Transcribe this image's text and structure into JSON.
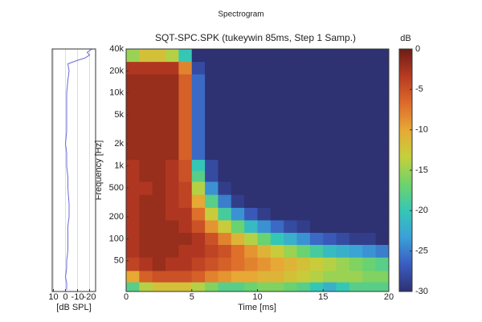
{
  "title": "Spectrogram",
  "chart_data": [
    {
      "type": "line",
      "xlabel": "[dB SPL]",
      "color": "#6b6bd6",
      "grid": true,
      "log_y": true,
      "y": [
        20,
        25,
        30,
        40,
        50,
        70,
        100,
        150,
        200,
        300,
        500,
        700,
        1000,
        1500,
        2000,
        3000,
        5000,
        7000,
        10000,
        15000,
        20000,
        25000,
        28000,
        30000,
        33000,
        36000,
        40000
      ],
      "values": [
        -1,
        -1,
        0,
        -1,
        -1,
        -2,
        -2,
        -2,
        -3,
        -3,
        -2,
        -2,
        -1,
        -1,
        0,
        -1,
        -1,
        -1,
        -1,
        -2,
        -3,
        -2,
        -10,
        -16,
        -20,
        -18,
        -22
      ],
      "xlim": [
        11,
        -25
      ],
      "xticks": [
        10,
        0,
        -10,
        -20
      ],
      "ylim": [
        19,
        40000
      ]
    },
    {
      "type": "heatmap",
      "title": "SQT-SPC.SPK (tukeywin 85ms, Step 1 Samp.)",
      "xlabel": "Time [ms]",
      "ylabel": "Frequency [Hz]",
      "log_y": true,
      "x": [
        0.5,
        1.5,
        2.5,
        3.5,
        4.5,
        5.5,
        6.5,
        7.5,
        8.5,
        9.5,
        10.5,
        11.5,
        12.5,
        13.5,
        14.5,
        15.5,
        16.5,
        17.5,
        18.5,
        19.5
      ],
      "y": [
        22,
        30,
        45,
        70,
        100,
        150,
        220,
        330,
        500,
        750,
        1000,
        1500,
        2200,
        3300,
        5000,
        7500,
        10000,
        15000,
        22000,
        33000
      ],
      "z": [
        [
          -18,
          -14,
          -12,
          -12,
          -12,
          -14,
          -16,
          -18,
          -18,
          -17,
          -16,
          -16,
          -17,
          -18,
          -20,
          -22,
          -20,
          -18,
          -18,
          -18
        ],
        [
          -10,
          -6,
          -5,
          -5,
          -5,
          -6,
          -8,
          -9,
          -10,
          -10,
          -11,
          -11,
          -12,
          -13,
          -14,
          -15,
          -15,
          -15,
          -16,
          -16
        ],
        [
          -4,
          -3,
          -2,
          -3,
          -3,
          -4,
          -5,
          -6,
          -7,
          -8,
          -9,
          -10,
          -11,
          -12,
          -13,
          -14,
          -15,
          -16,
          -17,
          -18
        ],
        [
          -3,
          -2,
          -2,
          -2,
          -3,
          -3,
          -4,
          -5,
          -7,
          -9,
          -11,
          -13,
          -15,
          -17,
          -19,
          -21,
          -22,
          -23,
          -24,
          -25
        ],
        [
          -3,
          -2,
          -2,
          -2,
          -2,
          -3,
          -5,
          -8,
          -11,
          -14,
          -17,
          -20,
          -22,
          -24,
          -26,
          -27,
          -28,
          -29,
          -29,
          -30
        ],
        [
          -3,
          -2,
          -2,
          -2,
          -3,
          -5,
          -9,
          -13,
          -17,
          -21,
          -24,
          -26,
          -28,
          -29,
          -30,
          -30,
          -30,
          -30,
          -30,
          -30
        ],
        [
          -3,
          -2,
          -2,
          -3,
          -3,
          -7,
          -13,
          -19,
          -24,
          -27,
          -29,
          -30,
          -30,
          -30,
          -30,
          -30,
          -30,
          -30,
          -30,
          -30
        ],
        [
          -3,
          -2,
          -2,
          -3,
          -4,
          -10,
          -18,
          -25,
          -29,
          -30,
          -30,
          -30,
          -30,
          -30,
          -30,
          -30,
          -30,
          -30,
          -30,
          -30
        ],
        [
          -3,
          -3,
          -2,
          -3,
          -4,
          -14,
          -24,
          -29,
          -30,
          -30,
          -30,
          -30,
          -30,
          -30,
          -30,
          -30,
          -30,
          -30,
          -30,
          -30
        ],
        [
          -3,
          -2,
          -2,
          -3,
          -5,
          -18,
          -28,
          -30,
          -30,
          -30,
          -30,
          -30,
          -30,
          -30,
          -30,
          -30,
          -30,
          -30,
          -30,
          -30
        ],
        [
          -3,
          -2,
          -2,
          -3,
          -5,
          -20,
          -28,
          -30,
          -30,
          -30,
          -30,
          -30,
          -30,
          -30,
          -30,
          -30,
          -30,
          -30,
          -30,
          -30
        ],
        [
          -2,
          -2,
          -2,
          -2,
          -6,
          -26,
          -30,
          -30,
          -30,
          -30,
          -30,
          -30,
          -30,
          -30,
          -30,
          -30,
          -30,
          -30,
          -30,
          -30
        ],
        [
          -2,
          -2,
          -2,
          -2,
          -6,
          -26,
          -30,
          -30,
          -30,
          -30,
          -30,
          -30,
          -30,
          -30,
          -30,
          -30,
          -30,
          -30,
          -30,
          -30
        ],
        [
          -2,
          -2,
          -2,
          -2,
          -6,
          -26,
          -30,
          -30,
          -30,
          -30,
          -30,
          -30,
          -30,
          -30,
          -30,
          -30,
          -30,
          -30,
          -30,
          -30
        ],
        [
          -2,
          -2,
          -2,
          -2,
          -6,
          -26,
          -30,
          -30,
          -30,
          -30,
          -30,
          -30,
          -30,
          -30,
          -30,
          -30,
          -30,
          -30,
          -30,
          -30
        ],
        [
          -2,
          -2,
          -2,
          -2,
          -6,
          -26,
          -30,
          -30,
          -30,
          -30,
          -30,
          -30,
          -30,
          -30,
          -30,
          -30,
          -30,
          -30,
          -30,
          -30
        ],
        [
          -2,
          -2,
          -2,
          -2,
          -6,
          -26,
          -30,
          -30,
          -30,
          -30,
          -30,
          -30,
          -30,
          -30,
          -30,
          -30,
          -30,
          -30,
          -30,
          -30
        ],
        [
          -2,
          -2,
          -2,
          -2,
          -6,
          -26,
          -30,
          -30,
          -30,
          -30,
          -30,
          -30,
          -30,
          -30,
          -30,
          -30,
          -30,
          -30,
          -30,
          -30
        ],
        [
          -3,
          -3,
          -3,
          -3,
          -8,
          -28,
          -30,
          -30,
          -30,
          -30,
          -30,
          -30,
          -30,
          -30,
          -30,
          -30,
          -30,
          -30,
          -30,
          -30
        ],
        [
          -15,
          -12,
          -12,
          -14,
          -20,
          -30,
          -30,
          -30,
          -30,
          -30,
          -30,
          -30,
          -30,
          -30,
          -30,
          -30,
          -30,
          -30,
          -30,
          -30
        ]
      ],
      "xlim": [
        0,
        20
      ],
      "xticks": [
        0,
        5,
        10,
        15,
        20
      ],
      "ylim": [
        19,
        40000
      ],
      "yticks": [
        50,
        100,
        200,
        500,
        {
          "value": 1000,
          "label": "1k"
        },
        {
          "value": 2000,
          "label": "2k"
        },
        {
          "value": 5000,
          "label": "5k"
        },
        {
          "value": 10000,
          "label": "10k"
        },
        {
          "value": 20000,
          "label": "20k"
        },
        {
          "value": 40000,
          "label": "40k"
        }
      ],
      "colorbar": {
        "label": "dB",
        "lim": [
          -30,
          0
        ],
        "ticks": [
          0,
          -5,
          -10,
          -15,
          -20,
          -25,
          -30
        ],
        "colors": [
          "#2e3172",
          "#3a5cc0",
          "#3aa0d8",
          "#35c7b5",
          "#6fd36a",
          "#c5d03c",
          "#e7a835",
          "#dd6a2a",
          "#b63a22",
          "#6b1d14"
        ]
      }
    }
  ]
}
